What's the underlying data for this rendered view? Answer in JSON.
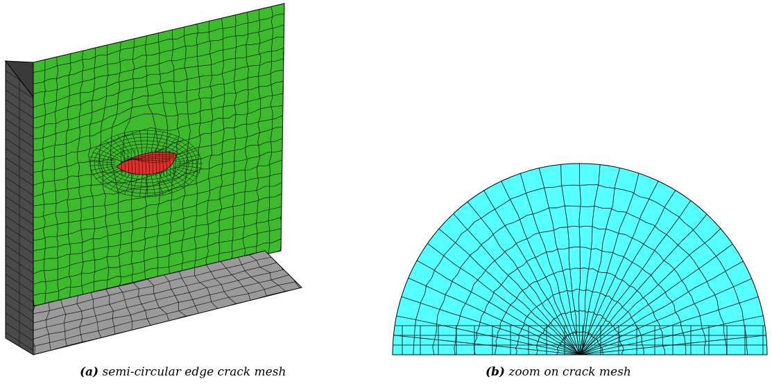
{
  "figure": {
    "panel_a": {
      "label": "(a)",
      "caption": "semi-circular edge crack mesh",
      "colors": {
        "face": "#3dbb2c",
        "side": "#4a4a4a",
        "bottom": "#9a9a9a",
        "crack": "#e0302a",
        "edge": "#000000"
      }
    },
    "panel_b": {
      "label": "(b)",
      "caption": "zoom on crack mesh",
      "colors": {
        "fill": "#55ffff",
        "edge": "#000000"
      }
    }
  }
}
